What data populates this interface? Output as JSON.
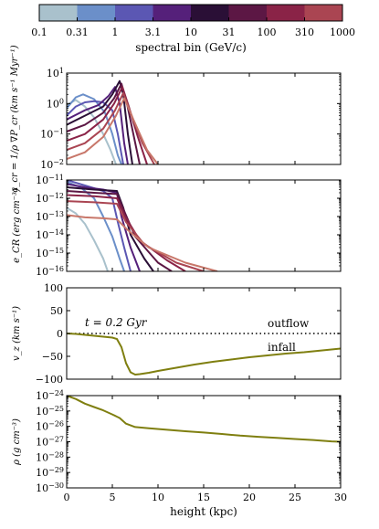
{
  "colorbar": {
    "label": "spectral bin (GeV/c)",
    "ticks": [
      "0.1",
      "0.31",
      "1",
      "3.1",
      "10",
      "31",
      "100",
      "310",
      "1000"
    ],
    "colors": [
      "#a9c1cc",
      "#6b8fc9",
      "#5b57b3",
      "#55207a",
      "#2a0f36",
      "#5c1744",
      "#8a2347",
      "#aa4552",
      "#c8776a"
    ]
  },
  "chart_data": [
    {
      "type": "line",
      "panel": "acceleration",
      "ylabel": "a_cr = 1/ρ ∇P_cr (km s⁻¹ Myr⁻¹)",
      "yscale": "log",
      "ylim": [
        0.01,
        10
      ],
      "xlim": [
        0,
        30
      ],
      "yticks": [
        "10^-2",
        "10^-1",
        "10^0",
        "10^1"
      ],
      "series": [
        {
          "color": "#a9c1cc",
          "points": [
            [
              0,
              0.9
            ],
            [
              1,
              1.3
            ],
            [
              2,
              0.8
            ],
            [
              3,
              0.35
            ],
            [
              4,
              0.1
            ],
            [
              4.8,
              0.03
            ],
            [
              5.4,
              0.01
            ]
          ]
        },
        {
          "color": "#6b8fc9",
          "points": [
            [
              0,
              0.7
            ],
            [
              1,
              1.6
            ],
            [
              1.8,
              2.0
            ],
            [
              3,
              1.4
            ],
            [
              4.2,
              0.5
            ],
            [
              5,
              0.1
            ],
            [
              5.6,
              0.02
            ],
            [
              6,
              0.01
            ]
          ]
        },
        {
          "color": "#5b57b3",
          "points": [
            [
              0,
              0.4
            ],
            [
              1,
              0.8
            ],
            [
              2,
              1.1
            ],
            [
              3,
              1.2
            ],
            [
              4,
              1.1
            ],
            [
              5,
              0.6
            ],
            [
              5.6,
              0.1
            ],
            [
              6.2,
              0.01
            ]
          ]
        },
        {
          "color": "#55207a",
          "points": [
            [
              0,
              0.3
            ],
            [
              2,
              0.6
            ],
            [
              3.5,
              0.9
            ],
            [
              4.6,
              1.8
            ],
            [
              5.3,
              3.5
            ],
            [
              5.8,
              1.0
            ],
            [
              6.3,
              0.05
            ],
            [
              6.7,
              0.01
            ]
          ]
        },
        {
          "color": "#2a0f36",
          "points": [
            [
              0,
              0.2
            ],
            [
              2,
              0.4
            ],
            [
              4,
              0.8
            ],
            [
              5,
              2.0
            ],
            [
              5.8,
              5.5
            ],
            [
              6.2,
              2.0
            ],
            [
              6.7,
              0.1
            ],
            [
              7.2,
              0.01
            ]
          ]
        },
        {
          "color": "#5c1744",
          "points": [
            [
              0,
              0.12
            ],
            [
              2,
              0.2
            ],
            [
              4,
              0.5
            ],
            [
              5.2,
              1.5
            ],
            [
              6,
              4.5
            ],
            [
              6.6,
              1.0
            ],
            [
              7.3,
              0.1
            ],
            [
              8,
              0.01
            ]
          ]
        },
        {
          "color": "#8a2347",
          "points": [
            [
              0,
              0.06
            ],
            [
              2,
              0.1
            ],
            [
              4,
              0.3
            ],
            [
              5.2,
              1.0
            ],
            [
              6.1,
              3.5
            ],
            [
              6.8,
              0.8
            ],
            [
              7.8,
              0.08
            ],
            [
              8.8,
              0.01
            ]
          ]
        },
        {
          "color": "#aa4552",
          "points": [
            [
              0,
              0.03
            ],
            [
              2,
              0.05
            ],
            [
              4,
              0.15
            ],
            [
              5.3,
              0.6
            ],
            [
              6.2,
              2.2
            ],
            [
              7,
              0.5
            ],
            [
              8.3,
              0.05
            ],
            [
              9.6,
              0.01
            ]
          ]
        },
        {
          "color": "#c8776a",
          "points": [
            [
              0,
              0.015
            ],
            [
              2,
              0.025
            ],
            [
              4,
              0.08
            ],
            [
              5.4,
              0.4
            ],
            [
              6.3,
              1.5
            ],
            [
              7.3,
              0.3
            ],
            [
              8.8,
              0.03
            ],
            [
              10,
              0.01
            ]
          ]
        }
      ]
    },
    {
      "type": "line",
      "panel": "energy-density",
      "ylabel": "e_CR (erg cm⁻³)",
      "yscale": "log",
      "ylim": [
        1e-16,
        1e-11
      ],
      "xlim": [
        0,
        30
      ],
      "yticks": [
        "10^-16",
        "10^-15",
        "10^-14",
        "10^-13",
        "10^-12",
        "10^-11"
      ],
      "series": [
        {
          "color": "#a9c1cc",
          "points": [
            [
              0,
              3e-13
            ],
            [
              1,
              1.5e-13
            ],
            [
              2,
              4e-14
            ],
            [
              3,
              5e-15
            ],
            [
              4,
              5e-16
            ],
            [
              4.5,
              1e-16
            ]
          ]
        },
        {
          "color": "#6b8fc9",
          "points": [
            [
              0,
              8e-12
            ],
            [
              1.5,
              4e-12
            ],
            [
              3,
              1e-12
            ],
            [
              4,
              1e-13
            ],
            [
              5,
              8e-15
            ],
            [
              5.8,
              5e-16
            ],
            [
              6.3,
              1e-16
            ]
          ]
        },
        {
          "color": "#5b57b3",
          "points": [
            [
              0,
              1e-11
            ],
            [
              2,
              5e-12
            ],
            [
              4,
              2.5e-12
            ],
            [
              5,
              1e-12
            ],
            [
              5.6,
              5e-14
            ],
            [
              6.3,
              2e-15
            ],
            [
              7,
              1e-16
            ]
          ]
        },
        {
          "color": "#55207a",
          "points": [
            [
              0,
              6e-12
            ],
            [
              2,
              4e-12
            ],
            [
              4,
              3e-12
            ],
            [
              5.5,
              2e-12
            ],
            [
              6,
              1e-13
            ],
            [
              7,
              2e-15
            ],
            [
              8,
              1e-16
            ]
          ]
        },
        {
          "color": "#2a0f36",
          "points": [
            [
              0,
              4e-12
            ],
            [
              3,
              3e-12
            ],
            [
              5.5,
              2.5e-12
            ],
            [
              6.2,
              3e-13
            ],
            [
              7,
              1e-14
            ],
            [
              8.5,
              5e-16
            ],
            [
              9.5,
              1e-16
            ]
          ]
        },
        {
          "color": "#5c1744",
          "points": [
            [
              0,
              2.5e-12
            ],
            [
              3,
              2e-12
            ],
            [
              5.5,
              1.7e-12
            ],
            [
              6.3,
              2e-13
            ],
            [
              7.5,
              8e-15
            ],
            [
              10,
              3e-16
            ],
            [
              11.5,
              1e-16
            ]
          ]
        },
        {
          "color": "#8a2347",
          "points": [
            [
              0,
              1.5e-12
            ],
            [
              3,
              1.3e-12
            ],
            [
              5.5,
              1e-12
            ],
            [
              6.4,
              1e-13
            ],
            [
              8,
              5e-15
            ],
            [
              11,
              4e-16
            ],
            [
              13,
              1e-16
            ]
          ]
        },
        {
          "color": "#aa4552",
          "points": [
            [
              0,
              7e-13
            ],
            [
              3,
              6e-13
            ],
            [
              5.5,
              5e-13
            ],
            [
              6.5,
              5e-14
            ],
            [
              8.5,
              3e-15
            ],
            [
              12,
              3e-16
            ],
            [
              15,
              1e-16
            ]
          ]
        },
        {
          "color": "#c8776a",
          "points": [
            [
              0,
              1.2e-13
            ],
            [
              2,
              9e-14
            ],
            [
              4,
              8e-14
            ],
            [
              5.5,
              7e-14
            ],
            [
              6.6,
              2e-14
            ],
            [
              9,
              2e-15
            ],
            [
              13,
              3e-16
            ],
            [
              16.5,
              1e-16
            ]
          ]
        }
      ]
    },
    {
      "type": "line",
      "panel": "velocity",
      "ylabel": "v_z (km s⁻¹)",
      "ylim": [
        -100,
        100
      ],
      "xlim": [
        0,
        30
      ],
      "yticks": [
        "−100",
        "−50",
        "0",
        "50",
        "100"
      ],
      "annotation": "t = 0.2 Gyr",
      "label_outflow": "outflow",
      "label_infall": "infall",
      "series": [
        {
          "color": "#7f7f10",
          "points": [
            [
              0,
              0
            ],
            [
              1,
              -1
            ],
            [
              2,
              -3
            ],
            [
              3,
              -5
            ],
            [
              4,
              -7
            ],
            [
              5,
              -9
            ],
            [
              5.5,
              -12
            ],
            [
              6,
              -30
            ],
            [
              6.5,
              -65
            ],
            [
              7,
              -85
            ],
            [
              7.5,
              -90
            ],
            [
              8,
              -89
            ],
            [
              9,
              -86
            ],
            [
              10,
              -82
            ],
            [
              12,
              -75
            ],
            [
              14,
              -68
            ],
            [
              16,
              -62
            ],
            [
              18,
              -57
            ],
            [
              20,
              -52
            ],
            [
              22,
              -48
            ],
            [
              24,
              -44
            ],
            [
              26,
              -41
            ],
            [
              28,
              -37
            ],
            [
              30,
              -33
            ]
          ]
        }
      ]
    },
    {
      "type": "line",
      "panel": "density",
      "xlabel": "height (kpc)",
      "ylabel": "ρ (g cm⁻³)",
      "yscale": "log",
      "ylim": [
        1e-30,
        1e-24
      ],
      "xlim": [
        0,
        30
      ],
      "xticks": [
        "0",
        "5",
        "10",
        "15",
        "20",
        "25",
        "30"
      ],
      "yticks": [
        "10^-30",
        "10^-29",
        "10^-28",
        "10^-27",
        "10^-26",
        "10^-25",
        "10^-24"
      ],
      "series": [
        {
          "color": "#7f7f10",
          "points": [
            [
              0,
              1e-24
            ],
            [
              1,
              6e-25
            ],
            [
              2,
              3e-25
            ],
            [
              3,
              1.8e-25
            ],
            [
              4,
              1.1e-25
            ],
            [
              5,
              6e-26
            ],
            [
              5.8,
              3.5e-26
            ],
            [
              6.5,
              1.5e-26
            ],
            [
              7.5,
              9e-27
            ],
            [
              9,
              7.5e-27
            ],
            [
              11,
              6e-27
            ],
            [
              13,
              4.8e-27
            ],
            [
              15,
              4e-27
            ],
            [
              17,
              3.2e-27
            ],
            [
              19,
              2.5e-27
            ],
            [
              21,
              2.1e-27
            ],
            [
              23,
              1.8e-27
            ],
            [
              25,
              1.5e-27
            ],
            [
              27,
              1.3e-27
            ],
            [
              29,
              1.05e-27
            ],
            [
              30,
              1e-27
            ]
          ]
        }
      ]
    }
  ]
}
